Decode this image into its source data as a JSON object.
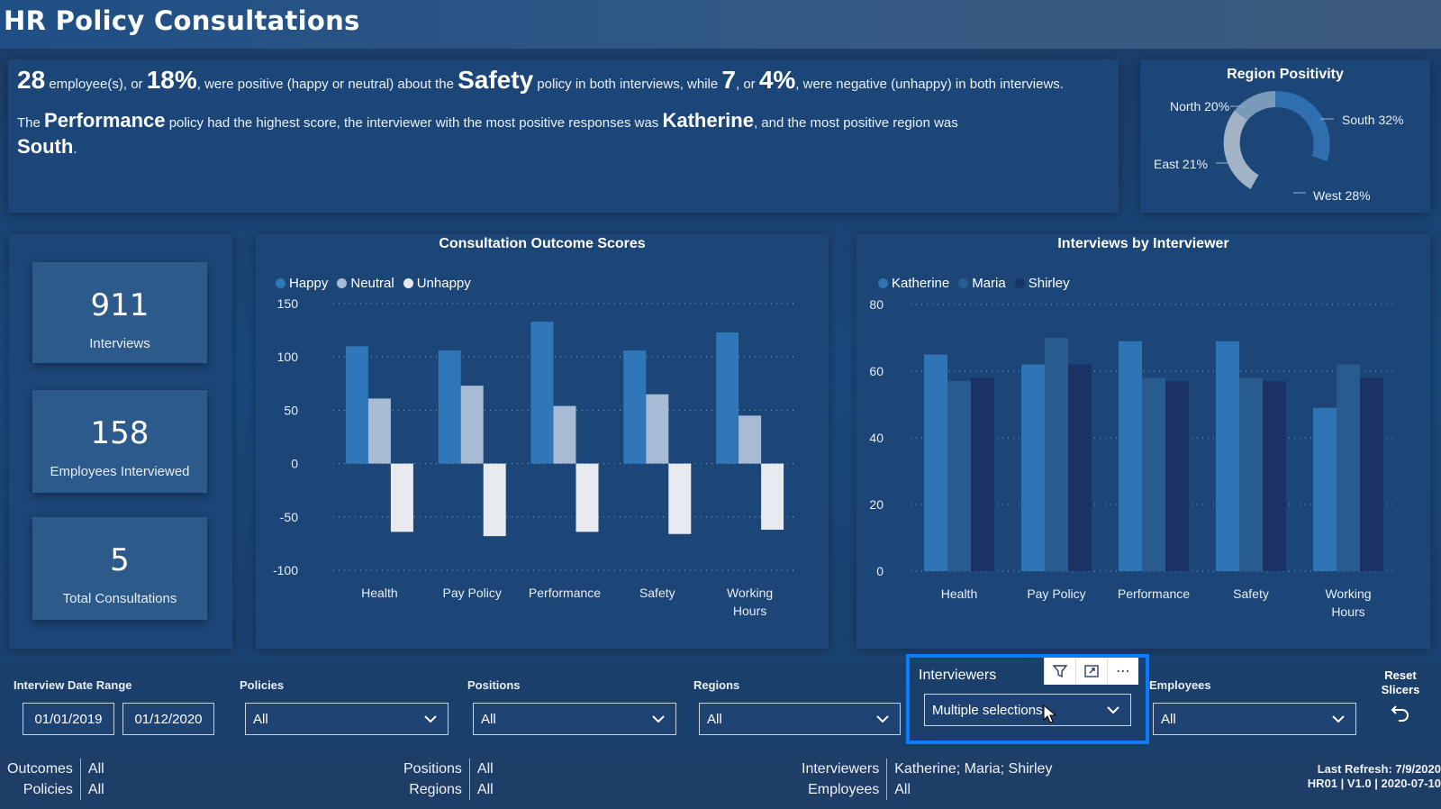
{
  "header": {
    "title": "HR Policy Consultations"
  },
  "summary": {
    "n_pos": "28",
    "t1": " employee(s), or ",
    "pct_pos": "18%",
    "t2": ", were positive (happy or neutral) about the ",
    "policy": "Safety",
    "t3": " policy in both interviews, while ",
    "n_neg": "7",
    "t4": ", or ",
    "pct_neg": "4%",
    "t5": ", were negative (unhappy) in both interviews.",
    "s1": "The ",
    "top_policy": "Performance",
    "s2": " policy had the highest score, the interviewer with the most positive responses was ",
    "top_interviewer": "Katherine",
    "s3": ", and the most positive region was ",
    "top_region": "South",
    "s4": "."
  },
  "region": {
    "title": "Region Positivity",
    "labels": [
      "North 20%",
      "South 32%",
      "East 21%",
      "West 28%"
    ]
  },
  "kpis": [
    {
      "value": "911",
      "label": "Interviews"
    },
    {
      "value": "158",
      "label": "Employees Interviewed"
    },
    {
      "value": "5",
      "label": "Total Consultations"
    }
  ],
  "chart_data": [
    {
      "type": "bar",
      "title": "Consultation Outcome Scores",
      "categories": [
        "Health",
        "Pay Policy",
        "Performance",
        "Safety",
        "Working Hours"
      ],
      "series": [
        {
          "name": "Happy",
          "color": "#2f77b8",
          "values": [
            110,
            106,
            133,
            106,
            123
          ]
        },
        {
          "name": "Neutral",
          "color": "#a8bbd4",
          "values": [
            61,
            73,
            54,
            65,
            45
          ]
        },
        {
          "name": "Unhappy",
          "color": "#e7eaee",
          "values": [
            -64,
            -68,
            -64,
            -66,
            -62
          ]
        }
      ],
      "ylim": [
        -100,
        150
      ],
      "yticks": [
        "150",
        "100",
        "50",
        "0",
        "-50",
        "-100"
      ]
    },
    {
      "type": "bar",
      "title": "Interviews by Interviewer",
      "categories": [
        "Health",
        "Pay Policy",
        "Performance",
        "Safety",
        "Working Hours"
      ],
      "series": [
        {
          "name": "Katherine",
          "color": "#2f74b4",
          "values": [
            65,
            62,
            69,
            69,
            49
          ]
        },
        {
          "name": "Maria",
          "color": "#285b8f",
          "values": [
            57,
            70,
            58,
            58,
            62
          ]
        },
        {
          "name": "Shirley",
          "color": "#1a3264",
          "values": [
            58,
            62,
            57,
            57,
            58
          ]
        }
      ],
      "ylim": [
        0,
        80
      ],
      "yticks": [
        "80",
        "60",
        "40",
        "20",
        "0"
      ]
    }
  ],
  "filters": {
    "date_title": "Interview Date Range",
    "date_from": "01/01/2019",
    "date_to": "01/12/2020",
    "policies_title": "Policies",
    "policies_value": "All",
    "positions_title": "Positions",
    "positions_value": "All",
    "regions_title": "Regions",
    "regions_value": "All",
    "interviewers_title": "Interviewers",
    "interviewers_value": "Multiple selections",
    "employees_title": "Employees",
    "employees_value": "All",
    "reset_label": "Reset Slicers"
  },
  "footer": {
    "outcomes_k": "Outcomes",
    "outcomes_v": "All",
    "policies_k": "Policies",
    "policies_v": "All",
    "positions_k": "Positions",
    "positions_v": "All",
    "regions_k": "Regions",
    "regions_v": "All",
    "interviewers_k": "Interviewers",
    "interviewers_v": "Katherine; Maria; Shirley",
    "employees_k": "Employees",
    "employees_v": "All",
    "refresh": "Last Refresh: 7/9/2020",
    "version": "HR01 | V1.0 | 2020-07-10"
  },
  "colors": {
    "accent": "#0a7cff",
    "panel": "#1c4677"
  }
}
